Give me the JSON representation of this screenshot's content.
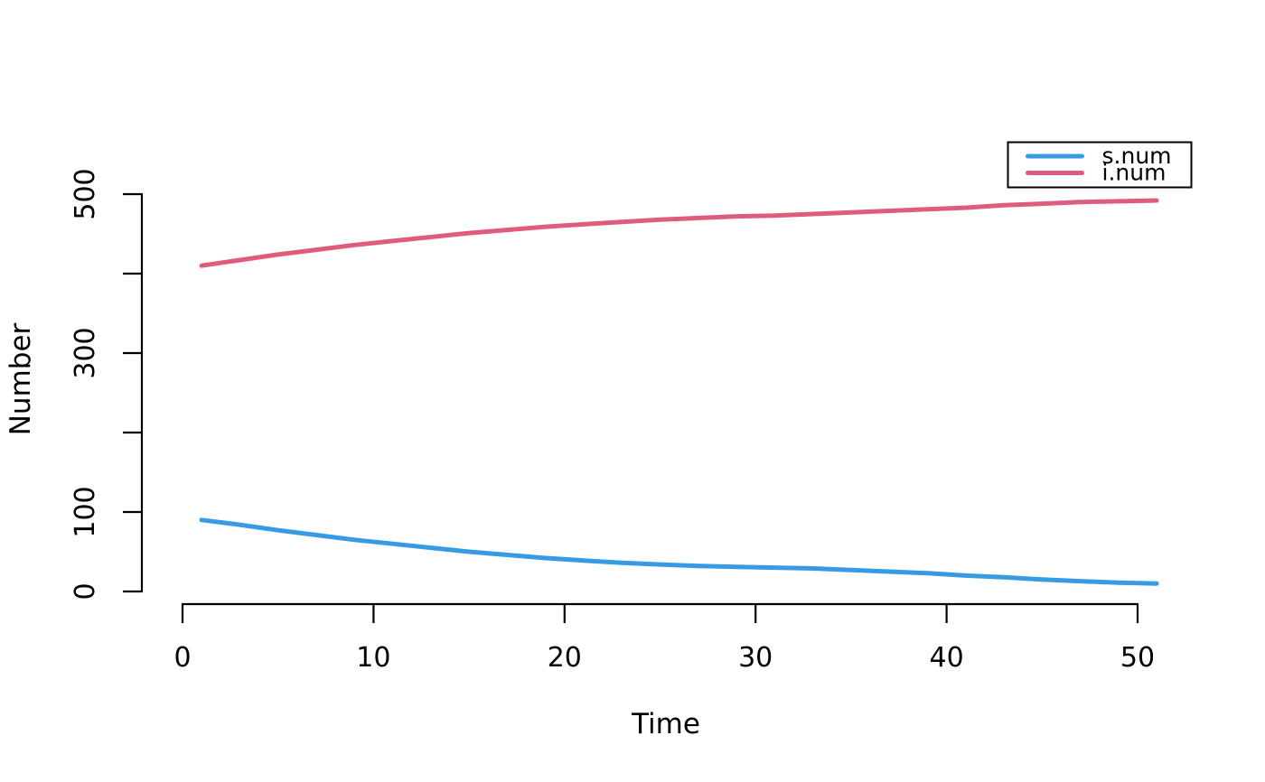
{
  "figure": {
    "background": "#ffffff",
    "axis_color": "#000000"
  },
  "chart_data": {
    "type": "line",
    "title": "",
    "xlabel": "Time",
    "ylabel": "Number",
    "xlim": [
      0,
      50
    ],
    "ylim": [
      0,
      500
    ],
    "grid": false,
    "line_width": 5,
    "x": [
      1,
      3,
      5,
      7,
      9,
      11,
      13,
      15,
      17,
      19,
      21,
      23,
      25,
      27,
      29,
      31,
      33,
      35,
      37,
      39,
      41,
      43,
      45,
      47,
      49,
      51
    ],
    "series": [
      {
        "name": "s.num",
        "color": "#369BE3",
        "values": [
          90,
          84,
          77,
          71,
          65,
          60,
          55,
          50,
          46,
          42,
          39,
          36,
          34,
          32,
          31,
          30,
          29,
          27,
          25,
          23,
          20,
          18,
          15,
          13,
          11,
          10
        ]
      },
      {
        "name": "i.num",
        "color": "#E05C7C",
        "values": [
          410,
          417,
          424,
          430,
          436,
          441,
          446,
          451,
          455,
          459,
          462,
          465,
          468,
          470,
          472,
          473,
          475,
          477,
          479,
          481,
          483,
          486,
          488,
          490,
          491,
          492
        ]
      }
    ],
    "x_ticks": [
      {
        "v": 0,
        "label": "0"
      },
      {
        "v": 10,
        "label": "10"
      },
      {
        "v": 20,
        "label": "20"
      },
      {
        "v": 30,
        "label": "30"
      },
      {
        "v": 40,
        "label": "40"
      },
      {
        "v": 50,
        "label": "50"
      }
    ],
    "y_ticks": [
      {
        "v": 0,
        "label": "0"
      },
      {
        "v": 100,
        "label": "100"
      },
      {
        "v": 200,
        "label": ""
      },
      {
        "v": 300,
        "label": "300"
      },
      {
        "v": 400,
        "label": ""
      },
      {
        "v": 500,
        "label": "500"
      }
    ],
    "legend": {
      "position": "top-right",
      "border_color": "#000000",
      "fill": "#ffffff",
      "items": [
        {
          "label": "s.num",
          "color": "#369BE3"
        },
        {
          "label": "i.num",
          "color": "#E05C7C"
        }
      ]
    }
  }
}
